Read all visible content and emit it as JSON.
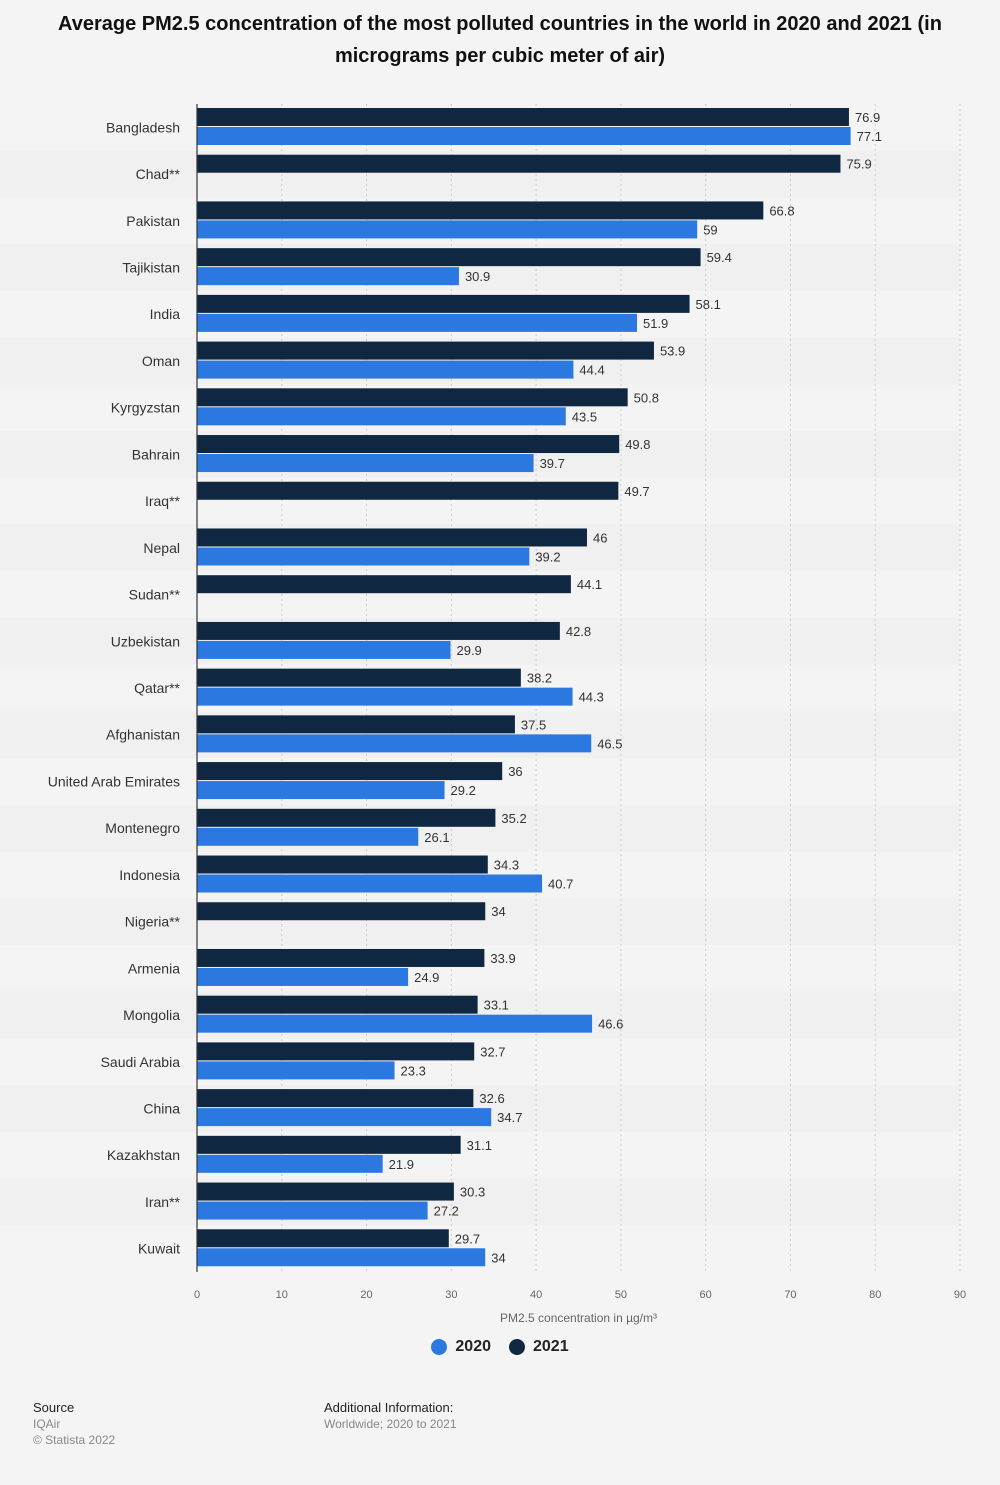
{
  "colors": {
    "series2020": "#2b79e0",
    "series2021": "#0f2740",
    "band": "#f0f0f0",
    "grid": "#cccccc"
  },
  "chart_data": {
    "type": "bar",
    "orientation": "horizontal",
    "title": "Average PM2.5 concentration of the most polluted countries in the world in 2020 and 2021 (in micrograms per cubic meter of air)",
    "xlabel": "PM2.5 concentration in µg/m³",
    "xlim": [
      0,
      90
    ],
    "ticks": [
      0,
      10,
      20,
      30,
      40,
      50,
      60,
      70,
      80,
      90
    ],
    "categories": [
      "Bangladesh",
      "Chad**",
      "Pakistan",
      "Tajikistan",
      "India",
      "Oman",
      "Kyrgyzstan",
      "Bahrain",
      "Iraq**",
      "Nepal",
      "Sudan**",
      "Uzbekistan",
      "Qatar**",
      "Afghanistan",
      "United Arab Emirates",
      "Montenegro",
      "Indonesia",
      "Nigeria**",
      "Armenia",
      "Mongolia",
      "Saudi Arabia",
      "China",
      "Kazakhstan",
      "Iran**",
      "Kuwait"
    ],
    "series": [
      {
        "name": "2021",
        "values": [
          76.9,
          75.9,
          66.8,
          59.4,
          58.1,
          53.9,
          50.8,
          49.8,
          49.7,
          46,
          44.1,
          42.8,
          38.2,
          37.5,
          36,
          35.2,
          34.3,
          34,
          33.9,
          33.1,
          32.7,
          32.6,
          31.1,
          30.3,
          29.7
        ]
      },
      {
        "name": "2020",
        "values": [
          77.1,
          null,
          59,
          30.9,
          51.9,
          44.4,
          43.5,
          39.7,
          null,
          39.2,
          null,
          29.9,
          44.3,
          46.5,
          29.2,
          26.1,
          40.7,
          null,
          24.9,
          46.6,
          23.3,
          34.7,
          21.9,
          27.2,
          34
        ]
      }
    ],
    "legend": [
      "2020",
      "2021"
    ],
    "legend_position": "bottom-center"
  },
  "footer": {
    "source_heading": "Source",
    "source_name": "IQAir",
    "copyright": "© Statista 2022",
    "addinfo_heading": "Additional Information:",
    "addinfo_text": "Worldwide; 2020 to 2021"
  }
}
